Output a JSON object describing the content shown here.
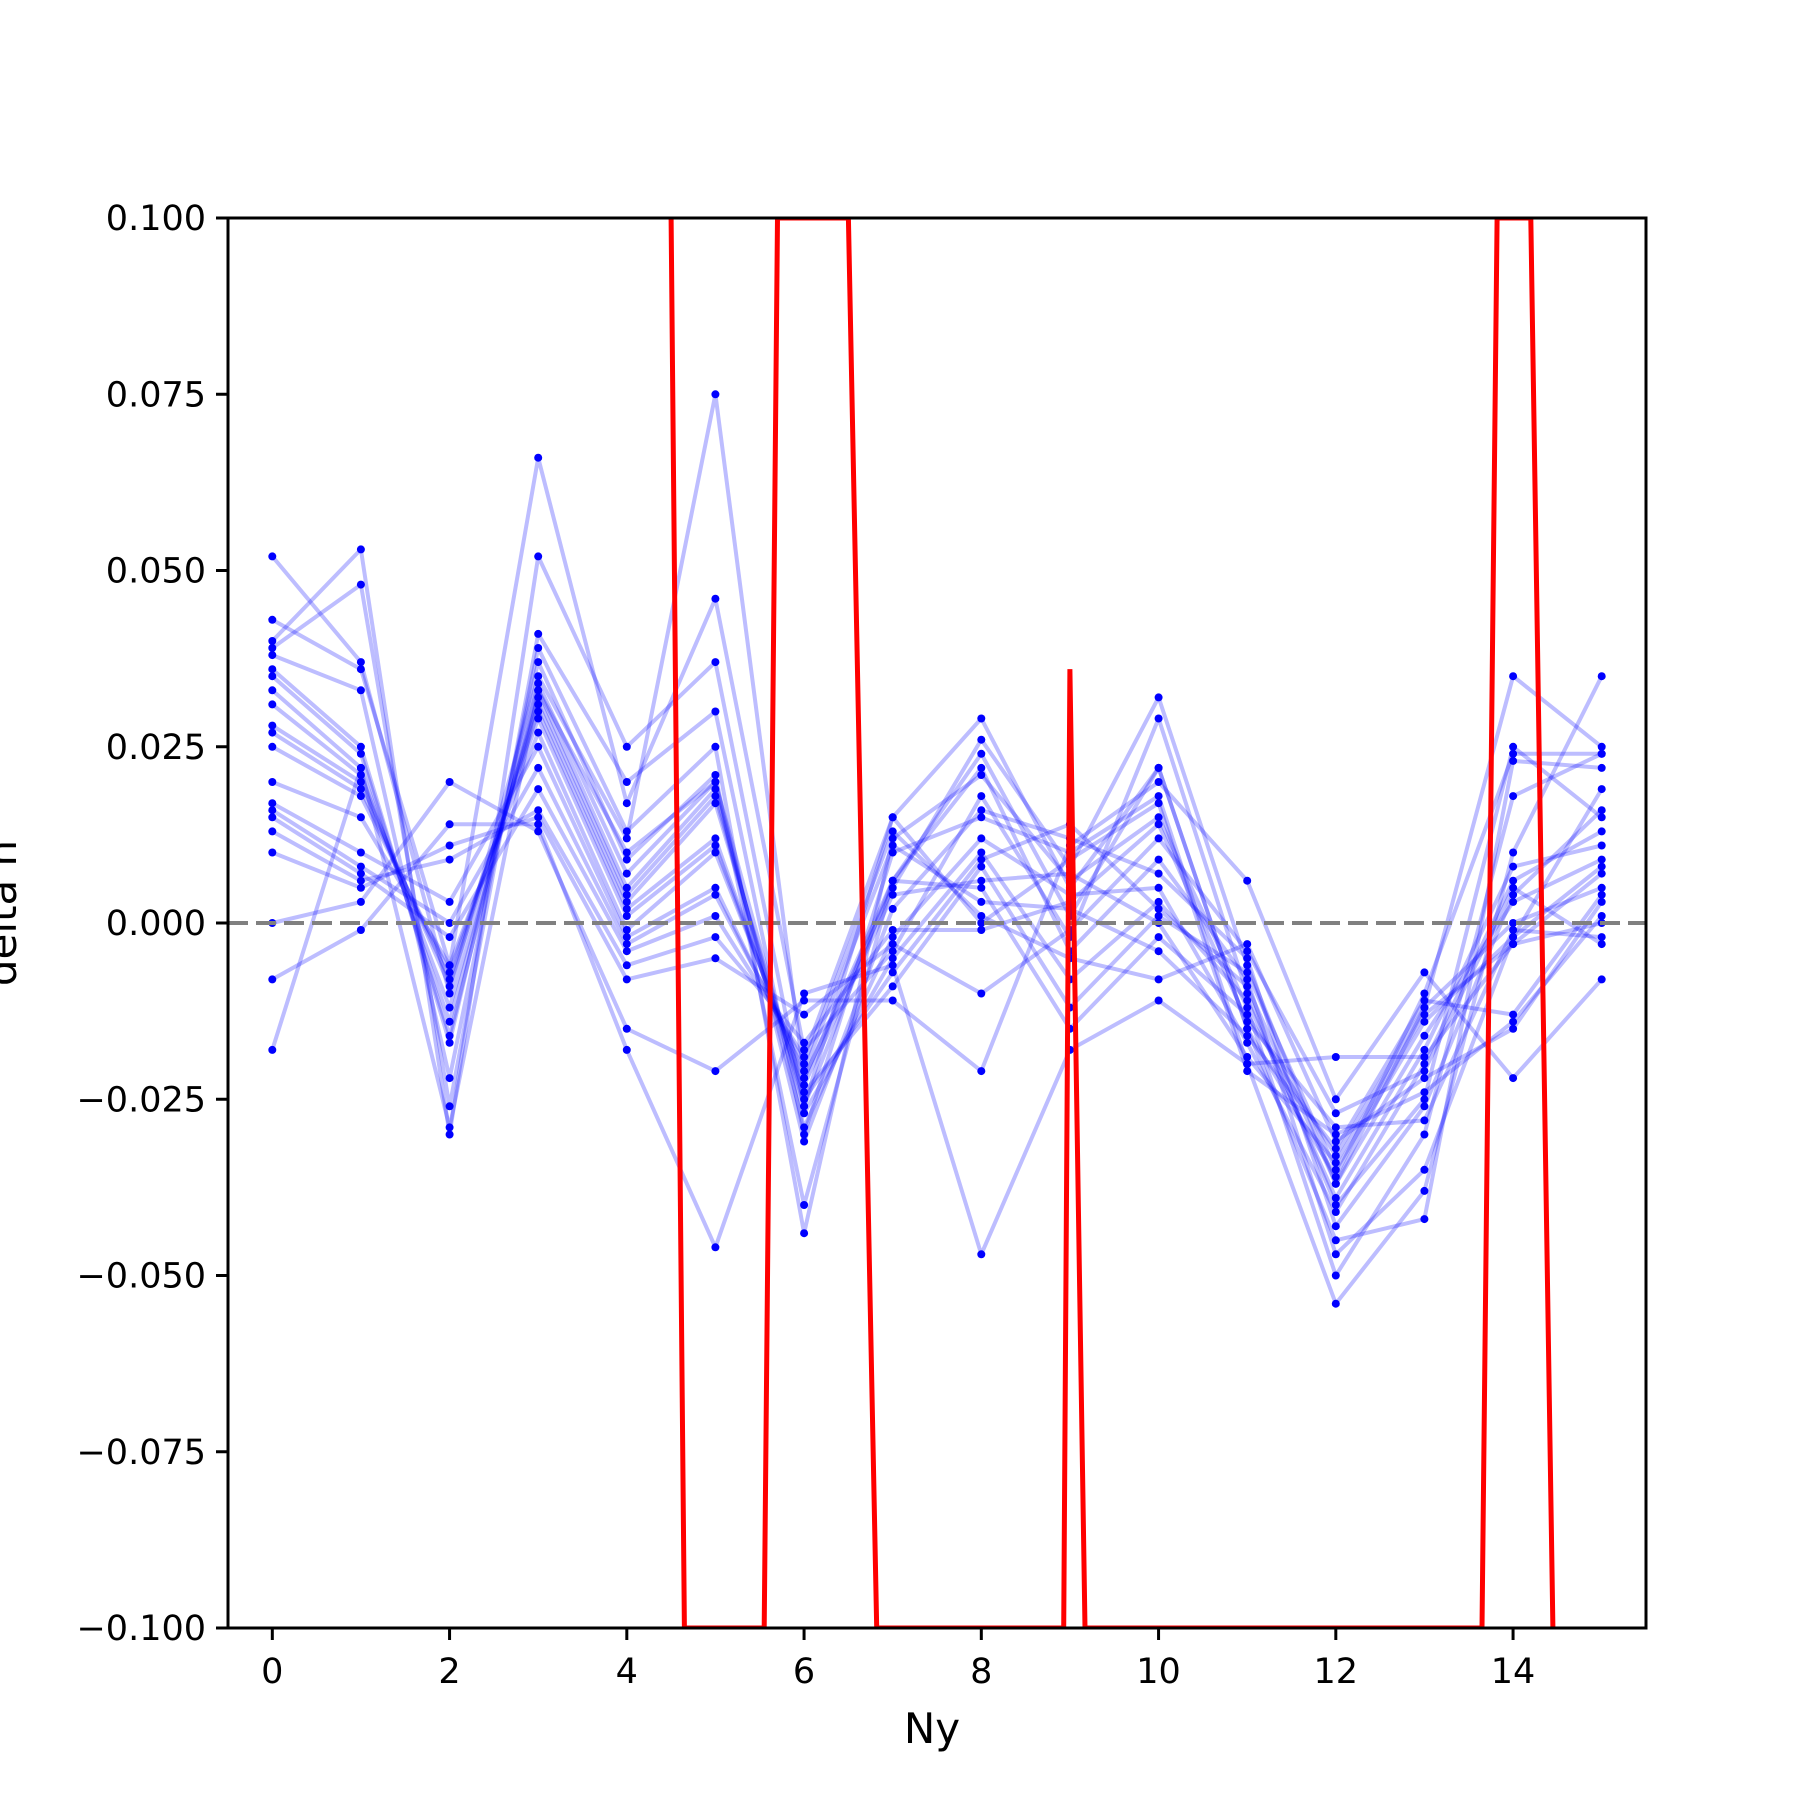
{
  "chart_data": {
    "type": "line",
    "title": "",
    "xlabel": "Ny",
    "ylabel": "delta n",
    "xlim": [
      -0.5,
      15.5
    ],
    "ylim": [
      -0.1,
      0.1
    ],
    "grid": false,
    "x_ticks": [
      "0",
      "2",
      "4",
      "6",
      "8",
      "10",
      "12",
      "14"
    ],
    "y_ticks": [
      "0.100",
      "0.075",
      "0.050",
      "0.025",
      "0.000",
      "−0.025",
      "−0.050",
      "−0.075",
      "−0.100"
    ],
    "reference_line": {
      "y": 0.0,
      "style": "dashed",
      "color": "#808080"
    },
    "colors": {
      "samples": "#0000ff",
      "mean": "#ff0000"
    },
    "x": [
      0,
      1,
      2,
      3,
      4,
      5,
      6,
      7,
      8,
      9,
      10,
      11,
      12,
      13,
      14,
      15
    ],
    "series": [
      {
        "values": [
          0.052,
          0.037,
          -0.01,
          0.035,
          0.012,
          0.075,
          -0.022,
          0.005,
          0.026,
          0.008,
          0.032,
          -0.006,
          -0.037,
          -0.012,
          0.035,
          0.025
        ]
      },
      {
        "values": [
          0.043,
          0.036,
          -0.006,
          0.066,
          0.017,
          0.046,
          -0.018,
          -0.004,
          0.018,
          -0.002,
          0.029,
          -0.01,
          -0.04,
          -0.025,
          0.025,
          0.015
        ]
      },
      {
        "values": [
          0.04,
          0.053,
          -0.03,
          0.052,
          0.025,
          0.037,
          -0.026,
          0.015,
          0.029,
          0.005,
          0.022,
          -0.015,
          -0.045,
          -0.042,
          0.023,
          0.022
        ]
      },
      {
        "values": [
          0.039,
          0.048,
          -0.026,
          0.041,
          0.02,
          0.03,
          -0.03,
          0.01,
          0.015,
          0.01,
          0.018,
          -0.02,
          -0.054,
          -0.038,
          0.01,
          0.035
        ]
      },
      {
        "values": [
          0.038,
          0.033,
          -0.022,
          0.039,
          0.013,
          0.025,
          -0.044,
          0.012,
          0.021,
          0.006,
          0.015,
          -0.012,
          -0.05,
          -0.03,
          0.018,
          0.024
        ]
      },
      {
        "values": [
          0.036,
          0.025,
          -0.017,
          0.037,
          0.009,
          0.021,
          -0.04,
          0.006,
          0.022,
          -0.004,
          0.009,
          -0.008,
          -0.047,
          -0.035,
          -0.002,
          0.019
        ]
      },
      {
        "values": [
          0.035,
          0.024,
          -0.016,
          0.034,
          0.007,
          0.02,
          -0.031,
          0.002,
          0.016,
          0.012,
          0.007,
          -0.005,
          -0.043,
          -0.026,
          0.004,
          0.016
        ]
      },
      {
        "values": [
          0.033,
          0.022,
          -0.014,
          0.033,
          0.005,
          0.019,
          -0.029,
          -0.002,
          0.012,
          0.004,
          0.005,
          -0.017,
          -0.041,
          -0.02,
          0.006,
          0.013
        ]
      },
      {
        "values": [
          0.031,
          0.021,
          -0.012,
          0.032,
          0.004,
          0.018,
          -0.027,
          -0.005,
          0.01,
          -0.008,
          0.003,
          -0.011,
          -0.039,
          -0.018,
          0.008,
          0.011
        ]
      },
      {
        "values": [
          0.028,
          0.02,
          -0.009,
          0.031,
          0.003,
          0.017,
          -0.025,
          -0.007,
          0.009,
          0.014,
          0.002,
          -0.009,
          -0.037,
          -0.016,
          0.003,
          0.009
        ]
      },
      {
        "values": [
          0.027,
          0.019,
          -0.008,
          0.03,
          0.002,
          0.012,
          -0.024,
          -0.009,
          0.008,
          -0.012,
          0.001,
          -0.007,
          -0.035,
          -0.014,
          -0.002,
          0.008
        ]
      },
      {
        "values": [
          0.025,
          0.018,
          -0.007,
          0.029,
          0.001,
          0.011,
          -0.023,
          0.004,
          0.006,
          0.007,
          0.0,
          -0.019,
          -0.034,
          -0.013,
          -0.003,
          0.007
        ]
      },
      {
        "values": [
          0.02,
          0.015,
          -0.006,
          0.027,
          -0.001,
          0.01,
          -0.022,
          0.006,
          0.005,
          -0.015,
          -0.002,
          -0.013,
          -0.033,
          -0.012,
          0.0,
          0.005
        ]
      },
      {
        "values": [
          0.017,
          0.01,
          0.003,
          0.025,
          -0.002,
          0.005,
          -0.021,
          0.011,
          0.003,
          0.002,
          -0.004,
          -0.016,
          -0.032,
          -0.011,
          -0.013,
          0.004
        ]
      },
      {
        "values": [
          0.016,
          0.008,
          0.0,
          0.022,
          -0.003,
          0.004,
          -0.02,
          0.013,
          0.001,
          -0.005,
          -0.008,
          -0.003,
          -0.031,
          -0.022,
          -0.015,
          0.003
        ]
      },
      {
        "values": [
          0.015,
          0.007,
          -0.002,
          0.019,
          -0.004,
          0.001,
          -0.019,
          0.015,
          0.0,
          0.009,
          0.017,
          -0.021,
          -0.03,
          -0.024,
          -0.014,
          0.001
        ]
      },
      {
        "values": [
          0.013,
          0.006,
          0.009,
          0.016,
          -0.006,
          -0.002,
          -0.017,
          -0.001,
          -0.001,
          0.003,
          0.014,
          -0.014,
          -0.029,
          -0.028,
          -0.001,
          -0.002
        ]
      },
      {
        "values": [
          0.01,
          0.005,
          0.011,
          0.015,
          -0.008,
          -0.005,
          -0.013,
          -0.003,
          -0.01,
          -0.001,
          0.012,
          -0.004,
          -0.027,
          -0.021,
          0.005,
          -0.003
        ]
      },
      {
        "values": [
          0.0,
          0.003,
          0.02,
          0.013,
          -0.015,
          -0.021,
          -0.011,
          -0.011,
          -0.021,
          0.011,
          0.02,
          0.006,
          -0.025,
          -0.007,
          -0.022,
          -0.008
        ]
      },
      {
        "values": [
          -0.008,
          -0.001,
          0.014,
          0.014,
          -0.018,
          -0.046,
          -0.01,
          -0.006,
          -0.047,
          -0.018,
          -0.011,
          -0.02,
          -0.019,
          -0.019,
          -0.003,
          0.0
        ]
      },
      {
        "values": [
          -0.018,
          0.022,
          -0.029,
          0.033,
          0.01,
          0.02,
          -0.026,
          0.006,
          0.024,
          0.001,
          0.022,
          -0.015,
          -0.036,
          -0.01,
          0.024,
          0.024
        ]
      }
    ],
    "mean_line": {
      "x": [
        4.5,
        4.65,
        5.55,
        5.7,
        6.5,
        6.82,
        8.93,
        9.0,
        9.17,
        13.65,
        13.82,
        14.2,
        14.45
      ],
      "y": [
        0.1,
        -0.1,
        -0.1,
        0.1,
        0.1,
        -0.1,
        -0.1,
        0.036,
        -0.1,
        -0.1,
        0.1,
        0.1,
        -0.1
      ]
    }
  }
}
